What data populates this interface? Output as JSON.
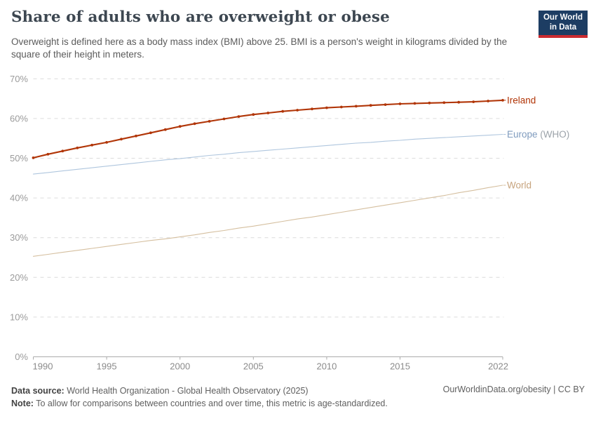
{
  "header": {
    "title": "Share of adults who are overweight or obese",
    "subtitle": "Overweight is defined here as a body mass index (BMI) above 25. BMI is a person's weight in kilograms divided by the square of their height in meters.",
    "logo": {
      "line1": "Our World",
      "line2": "in Data",
      "bg_color": "#1D3D63",
      "accent_color": "#CB2B30"
    }
  },
  "chart_data": {
    "type": "line",
    "title": "Share of adults who are overweight or obese",
    "xlabel": "",
    "ylabel": "",
    "y_unit": "%",
    "ylim": [
      0,
      70
    ],
    "grid": "horizontal-dashed",
    "legend_position": "right-of-line-ends",
    "y_ticks": [
      0,
      10,
      20,
      30,
      40,
      50,
      60,
      70
    ],
    "x_ticks": [
      1990,
      1995,
      2000,
      2005,
      2010,
      2015,
      2022
    ],
    "x": [
      1990,
      1991,
      1992,
      1993,
      1994,
      1995,
      1996,
      1997,
      1998,
      1999,
      2000,
      2001,
      2002,
      2003,
      2004,
      2005,
      2006,
      2007,
      2008,
      2009,
      2010,
      2011,
      2012,
      2013,
      2014,
      2015,
      2016,
      2017,
      2018,
      2019,
      2020,
      2021,
      2022
    ],
    "series": [
      {
        "name": "Ireland",
        "label_main": "Ireland",
        "color": "#B13507",
        "label_color": "#B13507",
        "markers": true,
        "values": [
          50.1,
          51.0,
          51.8,
          52.6,
          53.3,
          54.0,
          54.8,
          55.6,
          56.4,
          57.2,
          58.0,
          58.7,
          59.3,
          59.9,
          60.5,
          61.0,
          61.4,
          61.8,
          62.1,
          62.4,
          62.7,
          62.9,
          63.1,
          63.3,
          63.5,
          63.7,
          63.8,
          63.9,
          64.0,
          64.1,
          64.2,
          64.4,
          64.6
        ]
      },
      {
        "name": "Europe (WHO)",
        "label_main": "Europe",
        "label_paren": "(WHO)",
        "color": "#AFC6DE",
        "label_color": "#7F9BBE",
        "label_paren_color": "#9CA3AA",
        "markers": false,
        "values": [
          46.0,
          46.4,
          46.8,
          47.2,
          47.6,
          48.0,
          48.4,
          48.8,
          49.2,
          49.6,
          49.9,
          50.3,
          50.7,
          51.0,
          51.4,
          51.7,
          52.0,
          52.3,
          52.6,
          52.9,
          53.2,
          53.5,
          53.8,
          54.0,
          54.3,
          54.5,
          54.8,
          55.0,
          55.2,
          55.4,
          55.6,
          55.8,
          56.0
        ]
      },
      {
        "name": "World",
        "label_main": "World",
        "color": "#D5BF9F",
        "label_color": "#C7A47E",
        "markers": false,
        "values": [
          25.3,
          25.8,
          26.3,
          26.8,
          27.3,
          27.8,
          28.3,
          28.8,
          29.3,
          29.7,
          30.2,
          30.7,
          31.3,
          31.8,
          32.4,
          32.9,
          33.5,
          34.1,
          34.7,
          35.2,
          35.8,
          36.4,
          37.0,
          37.6,
          38.2,
          38.8,
          39.4,
          40.0,
          40.6,
          41.3,
          41.9,
          42.6,
          43.2
        ]
      }
    ]
  },
  "footer": {
    "source_label": "Data source:",
    "source_text": "World Health Organization - Global Health Observatory (2025)",
    "note_label": "Note:",
    "note_text": "To allow for comparisons between countries and over time, this metric is age-standardized.",
    "rights": "OurWorldinData.org/obesity | CC BY"
  }
}
